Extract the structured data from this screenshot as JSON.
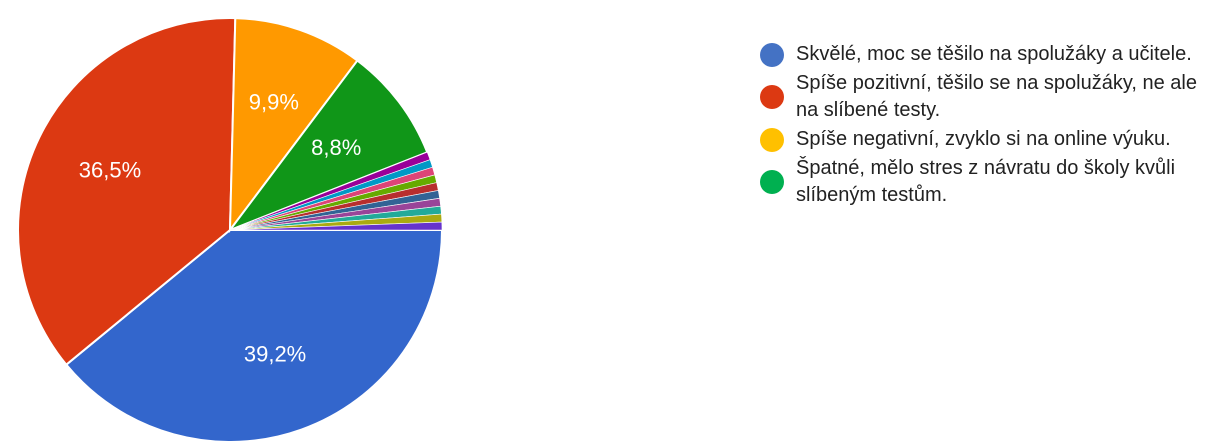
{
  "chart_data": {
    "type": "pie",
    "slices": [
      {
        "label": "Skvělé, moc se těšilo na spolužáky a učitele.",
        "value": 39.2,
        "value_label": "39,2%",
        "color": "#3366cc"
      },
      {
        "label": "Spíše pozitivní, těšilo se na spolužáky, ne ale na slíbené testy.",
        "value": 36.5,
        "value_label": "36,5%",
        "color": "#dc3912"
      },
      {
        "label": "Spíše negativní, zvyklo si na online výuku.",
        "value": 9.9,
        "value_label": "9,9%",
        "color": "#ff9900"
      },
      {
        "label": "Špatné, mělo stres z návratu do školy kvůli slíbeným testům.",
        "value": 8.8,
        "value_label": "8,8%",
        "color": "#109618"
      },
      {
        "label": "",
        "value": 0.6,
        "value_label": "",
        "color": "#990099"
      },
      {
        "label": "",
        "value": 0.6,
        "value_label": "",
        "color": "#0099c6"
      },
      {
        "label": "",
        "value": 0.6,
        "value_label": "",
        "color": "#dd4477"
      },
      {
        "label": "",
        "value": 0.6,
        "value_label": "",
        "color": "#66aa00"
      },
      {
        "label": "",
        "value": 0.6,
        "value_label": "",
        "color": "#b82e2e"
      },
      {
        "label": "",
        "value": 0.6,
        "value_label": "",
        "color": "#316395"
      },
      {
        "label": "",
        "value": 0.6,
        "value_label": "",
        "color": "#994499"
      },
      {
        "label": "",
        "value": 0.6,
        "value_label": "",
        "color": "#22aa99"
      },
      {
        "label": "",
        "value": 0.6,
        "value_label": "",
        "color": "#aaaa11"
      },
      {
        "label": "",
        "value": 0.6,
        "value_label": "",
        "color": "#6633cc"
      }
    ],
    "legend": {
      "position": "right",
      "items": [
        {
          "text": "Skvělé, moc se těšilo na spolužáky a učitele.",
          "color": "#4472c4"
        },
        {
          "text": "Spíše pozitivní, těšilo se na spolužáky, ne ale na slíbené testy.",
          "color": "#dc3912"
        },
        {
          "text": "Spíše negativní, zvyklo si na online výuku.",
          "color": "#ffc000"
        },
        {
          "text": "Špatné, mělo stres z návratu do školy kvůli slíbeným testům.",
          "color": "#00b050"
        }
      ]
    }
  }
}
